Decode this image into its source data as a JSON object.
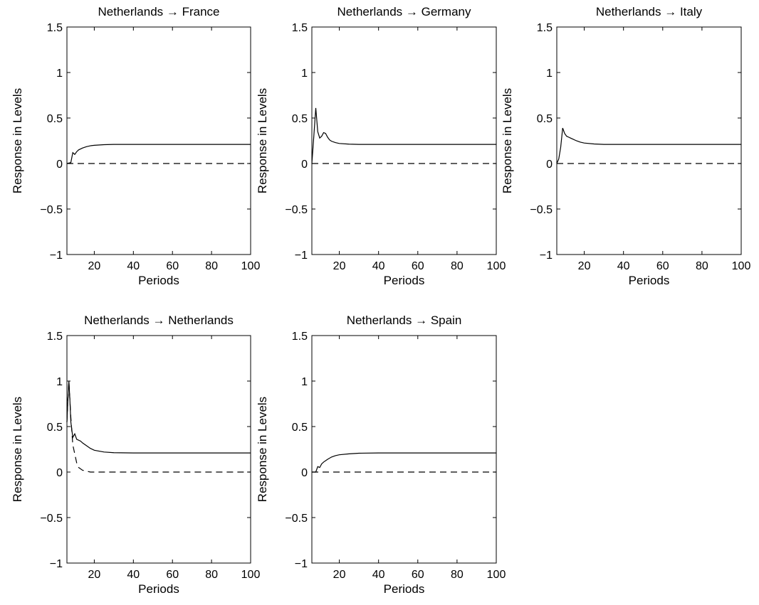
{
  "chart_data": [
    {
      "type": "line",
      "title": "Netherlands → France",
      "xlabel": "Periods",
      "ylabel": "Response in Levels",
      "xlim": [
        6,
        100
      ],
      "ylim": [
        -1,
        1.5
      ],
      "xticks": [
        20,
        40,
        60,
        80,
        100
      ],
      "yticks": [
        -1,
        -0.5,
        0,
        0.5,
        1,
        1.5
      ],
      "ytick_labels": [
        "−1",
        "−0.5",
        "0",
        "0.5",
        "1",
        "1.5"
      ],
      "series": [
        {
          "style": "solid",
          "x": [
            6,
            8,
            9,
            10,
            11,
            12,
            14,
            16,
            18,
            20,
            25,
            30,
            40,
            60,
            100
          ],
          "y": [
            0,
            0.01,
            0.12,
            0.1,
            0.13,
            0.15,
            0.17,
            0.185,
            0.195,
            0.2,
            0.207,
            0.21,
            0.21,
            0.21,
            0.21
          ]
        },
        {
          "style": "dashed",
          "x": [
            6,
            100
          ],
          "y": [
            0,
            0
          ]
        }
      ]
    },
    {
      "type": "line",
      "title": "Netherlands → Germany",
      "xlabel": "Periods",
      "ylabel": "Response in Levels",
      "xlim": [
        6,
        100
      ],
      "ylim": [
        -1,
        1.5
      ],
      "xticks": [
        20,
        40,
        60,
        80,
        100
      ],
      "yticks": [
        -1,
        -0.5,
        0,
        0.5,
        1,
        1.5
      ],
      "ytick_labels": [
        "−1",
        "−0.5",
        "0",
        "0.5",
        "1",
        "1.5"
      ],
      "series": [
        {
          "style": "solid",
          "x": [
            6,
            7,
            8,
            9,
            10,
            11,
            12,
            13,
            14,
            15,
            16,
            18,
            20,
            25,
            30,
            40,
            60,
            100
          ],
          "y": [
            0,
            0.3,
            0.61,
            0.35,
            0.28,
            0.3,
            0.34,
            0.33,
            0.29,
            0.26,
            0.245,
            0.23,
            0.22,
            0.213,
            0.21,
            0.21,
            0.21,
            0.21
          ]
        },
        {
          "style": "dashed",
          "x": [
            6,
            100
          ],
          "y": [
            0,
            0
          ]
        }
      ]
    },
    {
      "type": "line",
      "title": "Netherlands → Italy",
      "xlabel": "Periods",
      "ylabel": "Response in Levels",
      "xlim": [
        6,
        100
      ],
      "ylim": [
        -1,
        1.5
      ],
      "xticks": [
        20,
        40,
        60,
        80,
        100
      ],
      "yticks": [
        -1,
        -0.5,
        0,
        0.5,
        1,
        1.5
      ],
      "ytick_labels": [
        "−1",
        "−0.5",
        "0",
        "0.5",
        "1",
        "1.5"
      ],
      "series": [
        {
          "style": "solid",
          "x": [
            6,
            7,
            8,
            9,
            10,
            11,
            12,
            13,
            14,
            16,
            18,
            20,
            25,
            30,
            40,
            60,
            100
          ],
          "y": [
            0,
            0.05,
            0.18,
            0.39,
            0.33,
            0.3,
            0.29,
            0.28,
            0.27,
            0.25,
            0.235,
            0.225,
            0.215,
            0.21,
            0.21,
            0.21,
            0.21
          ]
        },
        {
          "style": "dashed",
          "x": [
            6,
            100
          ],
          "y": [
            0,
            0
          ]
        }
      ]
    },
    {
      "type": "line",
      "title": "Netherlands → Netherlands",
      "xlabel": "Periods",
      "ylabel": "Response in Levels",
      "xlim": [
        6,
        100
      ],
      "ylim": [
        -1,
        1.5
      ],
      "xticks": [
        20,
        40,
        60,
        80,
        100
      ],
      "yticks": [
        -1,
        -0.5,
        0,
        0.5,
        1,
        1.5
      ],
      "ytick_labels": [
        "−1",
        "−0.5",
        "0",
        "0.5",
        "1",
        "1.5"
      ],
      "series": [
        {
          "style": "solid",
          "x": [
            6,
            6.5,
            7,
            7.5,
            8,
            9,
            10,
            11,
            12,
            13,
            14,
            16,
            18,
            20,
            25,
            30,
            40,
            60,
            100
          ],
          "y": [
            0.55,
            0.8,
            1.0,
            0.8,
            0.55,
            0.38,
            0.42,
            0.36,
            0.35,
            0.34,
            0.32,
            0.29,
            0.26,
            0.24,
            0.22,
            0.213,
            0.21,
            0.21,
            0.21
          ]
        },
        {
          "style": "dashed",
          "x": [
            6,
            6.5,
            7,
            8,
            9,
            10,
            11,
            12,
            14,
            16,
            18,
            20,
            25,
            100
          ],
          "y": [
            0.55,
            0.8,
            1.0,
            0.6,
            0.3,
            0.2,
            0.1,
            0.05,
            0.02,
            0.01,
            0.0,
            0.0,
            0.0,
            0.0
          ]
        }
      ]
    },
    {
      "type": "line",
      "title": "Netherlands → Spain",
      "xlabel": "Periods",
      "ylabel": "Response in Levels",
      "xlim": [
        6,
        100
      ],
      "ylim": [
        -1,
        1.5
      ],
      "xticks": [
        20,
        40,
        60,
        80,
        100
      ],
      "yticks": [
        -1,
        -0.5,
        0,
        0.5,
        1,
        1.5
      ],
      "ytick_labels": [
        "−1",
        "−0.5",
        "0",
        "0.5",
        "1",
        "1.5"
      ],
      "series": [
        {
          "style": "solid",
          "x": [
            6,
            8,
            9,
            10,
            11,
            12,
            14,
            16,
            18,
            20,
            25,
            30,
            40,
            60,
            100
          ],
          "y": [
            0,
            0.0,
            0.06,
            0.05,
            0.09,
            0.11,
            0.14,
            0.165,
            0.18,
            0.19,
            0.2,
            0.207,
            0.21,
            0.21,
            0.21
          ]
        },
        {
          "style": "dashed",
          "x": [
            6,
            100
          ],
          "y": [
            0,
            0
          ]
        }
      ]
    }
  ]
}
